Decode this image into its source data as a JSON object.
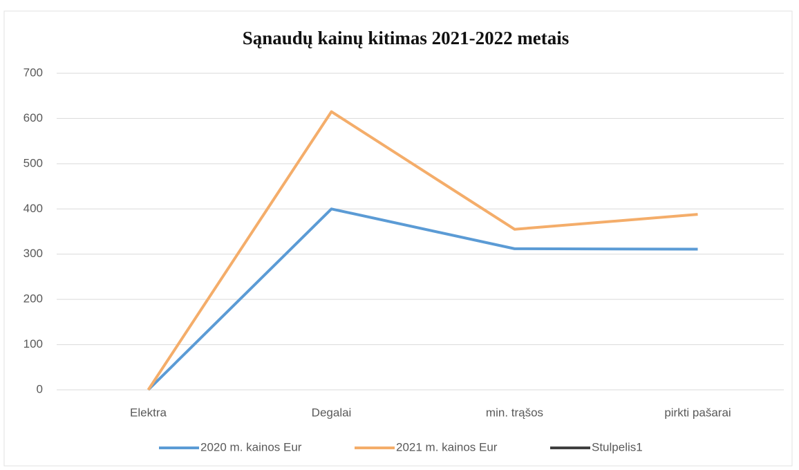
{
  "chart_data": {
    "type": "line",
    "title": "Sąnaudų kainų kitimas 2021-2022 metais",
    "categories": [
      "Elektra",
      "Degalai",
      "min. trąšos",
      "pirkti pašarai"
    ],
    "series": [
      {
        "name": "2020 m. kainos Eur",
        "color": "#5b9bd5",
        "values": [
          0,
          400,
          312,
          311
        ]
      },
      {
        "name": "2021 m. kainos Eur",
        "color": "#f4ad6a",
        "values": [
          0,
          615,
          355,
          388
        ]
      },
      {
        "name": "Stulpelis1",
        "color": "#404040",
        "values": [
          null,
          null,
          null,
          null
        ]
      }
    ],
    "ylim": [
      0,
      700
    ],
    "yticks": [
      0,
      100,
      200,
      300,
      400,
      500,
      600,
      700
    ],
    "grid": true,
    "legend": "bottom"
  }
}
